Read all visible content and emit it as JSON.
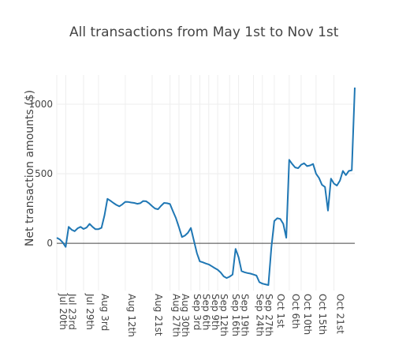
{
  "chart_data": {
    "type": "line",
    "title": "All transactions from May 1st to Nov 1st",
    "xlabel": "",
    "ylabel": "Net transaction amounts ($)",
    "ylim": [
      -340,
      1210
    ],
    "yticks": [
      0,
      500,
      1000
    ],
    "grid": true,
    "legend": "none",
    "colors": {
      "line": "#1f77b4",
      "zero_line": "#444444",
      "grid": "#eeeeee",
      "text": "#444444"
    },
    "xlim": [
      "2020-07-20",
      "2020-10-28"
    ],
    "xtick_labels": [
      {
        "date": "2020-07-20",
        "label": "Jul 20th"
      },
      {
        "date": "2020-07-23",
        "label": "Jul 23rd"
      },
      {
        "date": "2020-07-29",
        "label": "Jul 29th"
      },
      {
        "date": "2020-08-03",
        "label": "Aug 3rd"
      },
      {
        "date": "2020-08-12",
        "label": "Aug 12th"
      },
      {
        "date": "2020-08-21",
        "label": "Aug 21st"
      },
      {
        "date": "2020-08-27",
        "label": "Aug 27th"
      },
      {
        "date": "2020-08-30",
        "label": "Aug 30th"
      },
      {
        "date": "2020-09-03",
        "label": "Sep 3rd"
      },
      {
        "date": "2020-09-06",
        "label": "Sep 6th"
      },
      {
        "date": "2020-09-09",
        "label": "Sep 9th"
      },
      {
        "date": "2020-09-12",
        "label": "Sep 12th"
      },
      {
        "date": "2020-09-16",
        "label": "Sep 16th"
      },
      {
        "date": "2020-09-19",
        "label": "Sep 19th"
      },
      {
        "date": "2020-09-24",
        "label": "Sep 24th"
      },
      {
        "date": "2020-09-27",
        "label": "Sep 27th"
      },
      {
        "date": "2020-10-01",
        "label": "Oct 1st"
      },
      {
        "date": "2020-10-06",
        "label": "Oct 6th"
      },
      {
        "date": "2020-10-10",
        "label": "Oct 10th"
      },
      {
        "date": "2020-10-15",
        "label": "Oct 15th"
      },
      {
        "date": "2020-10-21",
        "label": "Oct 21st"
      }
    ],
    "series": [
      {
        "x": [
          "2020-07-20",
          "2020-07-21",
          "2020-07-22",
          "2020-07-23",
          "2020-07-24",
          "2020-07-25",
          "2020-07-26",
          "2020-07-27",
          "2020-07-28",
          "2020-07-29",
          "2020-07-30",
          "2020-07-31",
          "2020-08-01",
          "2020-08-02",
          "2020-08-03",
          "2020-08-04",
          "2020-08-05",
          "2020-08-06",
          "2020-08-07",
          "2020-08-08",
          "2020-08-09",
          "2020-08-10",
          "2020-08-11",
          "2020-08-12",
          "2020-08-13",
          "2020-08-14",
          "2020-08-15",
          "2020-08-16",
          "2020-08-17",
          "2020-08-18",
          "2020-08-19",
          "2020-08-20",
          "2020-08-21",
          "2020-08-22",
          "2020-08-23",
          "2020-08-24",
          "2020-08-25",
          "2020-08-26",
          "2020-08-27",
          "2020-08-28",
          "2020-08-29",
          "2020-08-30",
          "2020-08-31",
          "2020-09-01",
          "2020-09-02",
          "2020-09-03",
          "2020-09-04",
          "2020-09-05",
          "2020-09-06",
          "2020-09-07",
          "2020-09-08",
          "2020-09-09",
          "2020-09-10",
          "2020-09-11",
          "2020-09-12",
          "2020-09-13",
          "2020-09-14",
          "2020-09-15",
          "2020-09-16",
          "2020-09-17",
          "2020-09-18",
          "2020-09-19",
          "2020-09-20",
          "2020-09-21",
          "2020-09-22",
          "2020-09-23",
          "2020-09-24",
          "2020-09-25",
          "2020-09-26",
          "2020-09-27",
          "2020-09-28",
          "2020-09-29",
          "2020-09-30",
          "2020-10-01",
          "2020-10-02",
          "2020-10-03",
          "2020-10-04",
          "2020-10-05",
          "2020-10-06",
          "2020-10-07",
          "2020-10-08",
          "2020-10-09",
          "2020-10-10",
          "2020-10-11",
          "2020-10-12",
          "2020-10-13",
          "2020-10-14",
          "2020-10-15",
          "2020-10-16",
          "2020-10-17",
          "2020-10-18",
          "2020-10-19",
          "2020-10-20",
          "2020-10-21",
          "2020-10-22",
          "2020-10-23",
          "2020-10-24",
          "2020-10-25",
          "2020-10-26",
          "2020-10-27",
          "2020-10-28"
        ],
        "y": [
          40,
          28,
          6,
          -26,
          118,
          97,
          87,
          108,
          118,
          103,
          113,
          140,
          118,
          101,
          102,
          111,
          200,
          320,
          306,
          290,
          276,
          266,
          280,
          298,
          297,
          293,
          290,
          284,
          288,
          304,
          302,
          287,
          267,
          250,
          245,
          270,
          290,
          288,
          282,
          230,
          180,
          115,
          45,
          55,
          75,
          110,
          20,
          -70,
          -130,
          -137,
          -145,
          -152,
          -165,
          -178,
          -190,
          -210,
          -238,
          -250,
          -240,
          -225,
          -40,
          -100,
          -200,
          -208,
          -214,
          -218,
          -225,
          -232,
          -280,
          -290,
          -295,
          -300,
          -30,
          160,
          180,
          175,
          140,
          40,
          600,
          570,
          545,
          540,
          565,
          575,
          555,
          560,
          570,
          500,
          470,
          420,
          405,
          235,
          465,
          430,
          415,
          450,
          520,
          490,
          520,
          525,
          1120
        ]
      }
    ]
  }
}
